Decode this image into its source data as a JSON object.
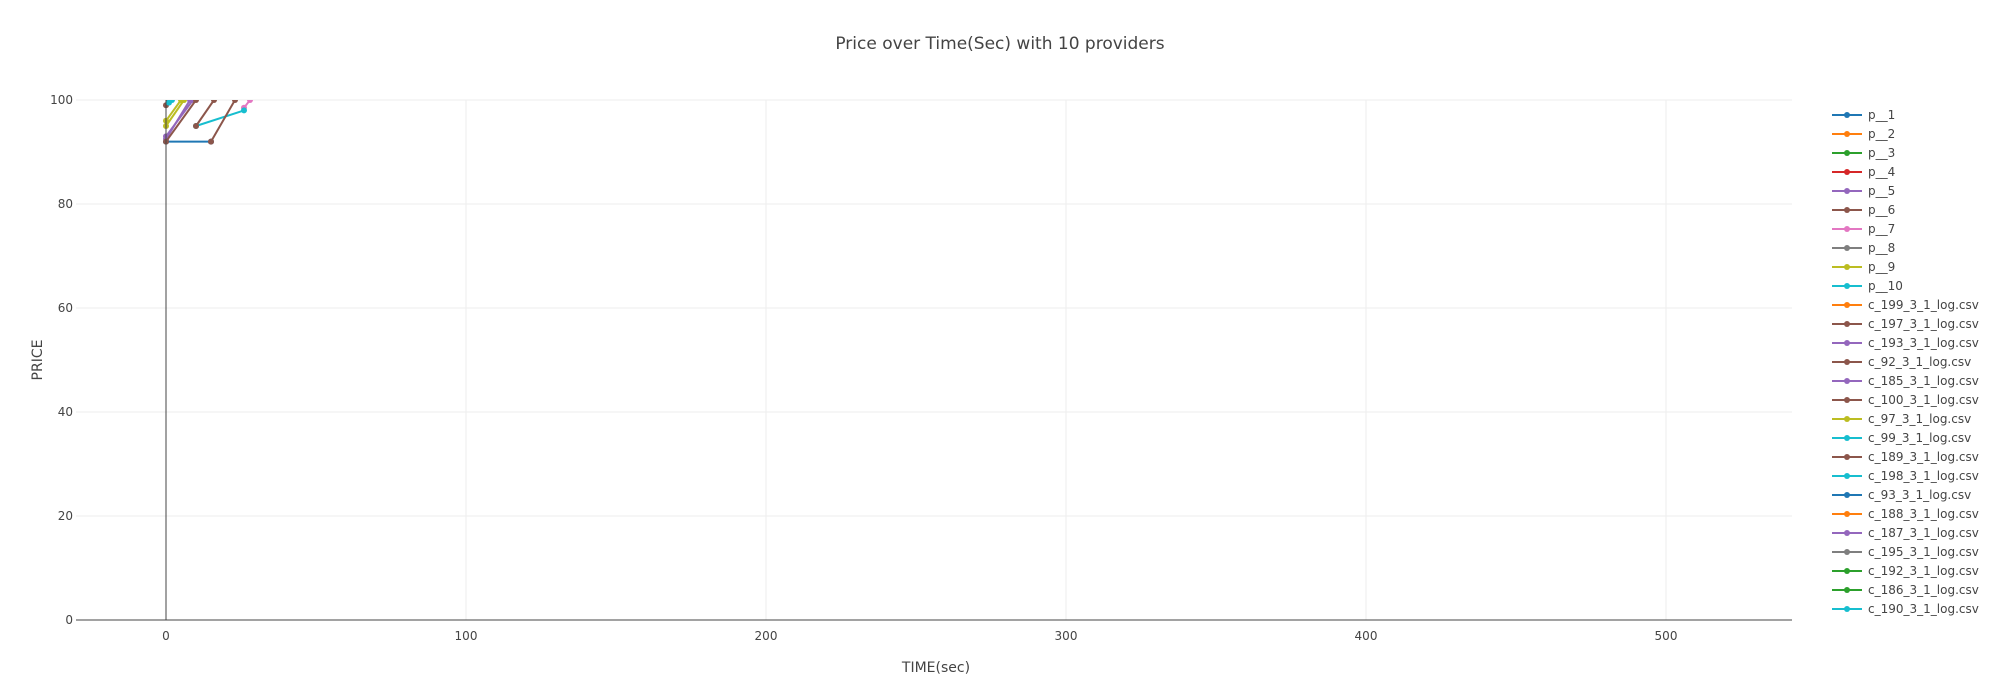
{
  "chart_data": {
    "type": "line",
    "title": "Price over Time(Sec) with 10 providers",
    "xlabel": "TIME(sec)",
    "ylabel": "PRICE",
    "xlim": [
      -30,
      542
    ],
    "ylim": [
      0,
      100
    ],
    "x_ticks": [
      0,
      100,
      200,
      300,
      400,
      500
    ],
    "y_ticks": [
      0,
      20,
      40,
      60,
      80,
      100
    ],
    "grid": true,
    "legend_position": "right",
    "series": [
      {
        "name": "p__1",
        "color": "#1f77b4",
        "x": [
          0,
          15
        ],
        "y": [
          92,
          92
        ]
      },
      {
        "name": "p__2",
        "color": "#ff7f0e",
        "x": [],
        "y": []
      },
      {
        "name": "p__3",
        "color": "#2ca02c",
        "x": [],
        "y": []
      },
      {
        "name": "p__4",
        "color": "#d62728",
        "x": [],
        "y": []
      },
      {
        "name": "p__5",
        "color": "#9467bd",
        "x": [
          0,
          9
        ],
        "y": [
          93,
          100
        ]
      },
      {
        "name": "p__6",
        "color": "#8c564b",
        "x": [
          0,
          1
        ],
        "y": [
          99,
          100
        ]
      },
      {
        "name": "p__7",
        "color": "#e377c2",
        "x": [
          26,
          28
        ],
        "y": [
          98.5,
          100
        ]
      },
      {
        "name": "p__8",
        "color": "#7f7f7f",
        "x": [],
        "y": []
      },
      {
        "name": "p__9",
        "color": "#bcbd22",
        "x": [
          0,
          6
        ],
        "y": [
          95,
          100
        ]
      },
      {
        "name": "p__10",
        "color": "#17becf",
        "x": [
          10,
          26
        ],
        "y": [
          95,
          98
        ]
      },
      {
        "name": "c_199_3_1_log.csv",
        "color": "#ff7f0e",
        "x": [],
        "y": []
      },
      {
        "name": "c_197_3_1_log.csv",
        "color": "#8c564b",
        "x": [
          15,
          23
        ],
        "y": [
          92,
          100
        ]
      },
      {
        "name": "c_193_3_1_log.csv",
        "color": "#9467bd",
        "x": [
          0,
          8
        ],
        "y": [
          92.5,
          100
        ]
      },
      {
        "name": "c_92_3_1_log.csv",
        "color": "#8c564b",
        "x": [
          0,
          10
        ],
        "y": [
          92,
          100
        ]
      },
      {
        "name": "c_185_3_1_log.csv",
        "color": "#9467bd",
        "x": [],
        "y": []
      },
      {
        "name": "c_100_3_1_log.csv",
        "color": "#8c564b",
        "x": [
          10,
          16
        ],
        "y": [
          95,
          100
        ]
      },
      {
        "name": "c_97_3_1_log.csv",
        "color": "#bcbd22",
        "x": [
          0,
          5
        ],
        "y": [
          96,
          100
        ]
      },
      {
        "name": "c_99_3_1_log.csv",
        "color": "#17becf",
        "x": [
          1,
          2
        ],
        "y": [
          99.5,
          100
        ]
      },
      {
        "name": "c_189_3_1_log.csv",
        "color": "#8c564b",
        "x": [],
        "y": []
      },
      {
        "name": "c_198_3_1_log.csv",
        "color": "#17becf",
        "x": [],
        "y": []
      },
      {
        "name": "c_93_3_1_log.csv",
        "color": "#1f77b4",
        "x": [],
        "y": []
      },
      {
        "name": "c_188_3_1_log.csv",
        "color": "#ff7f0e",
        "x": [],
        "y": []
      },
      {
        "name": "c_187_3_1_log.csv",
        "color": "#9467bd",
        "x": [],
        "y": []
      },
      {
        "name": "c_195_3_1_log.csv",
        "color": "#7f7f7f",
        "x": [],
        "y": []
      },
      {
        "name": "c_192_3_1_log.csv",
        "color": "#2ca02c",
        "x": [],
        "y": []
      },
      {
        "name": "c_186_3_1_log.csv",
        "color": "#2ca02c",
        "x": [],
        "y": []
      },
      {
        "name": "c_190_3_1_log.csv",
        "color": "#17becf",
        "x": [],
        "y": []
      }
    ]
  }
}
